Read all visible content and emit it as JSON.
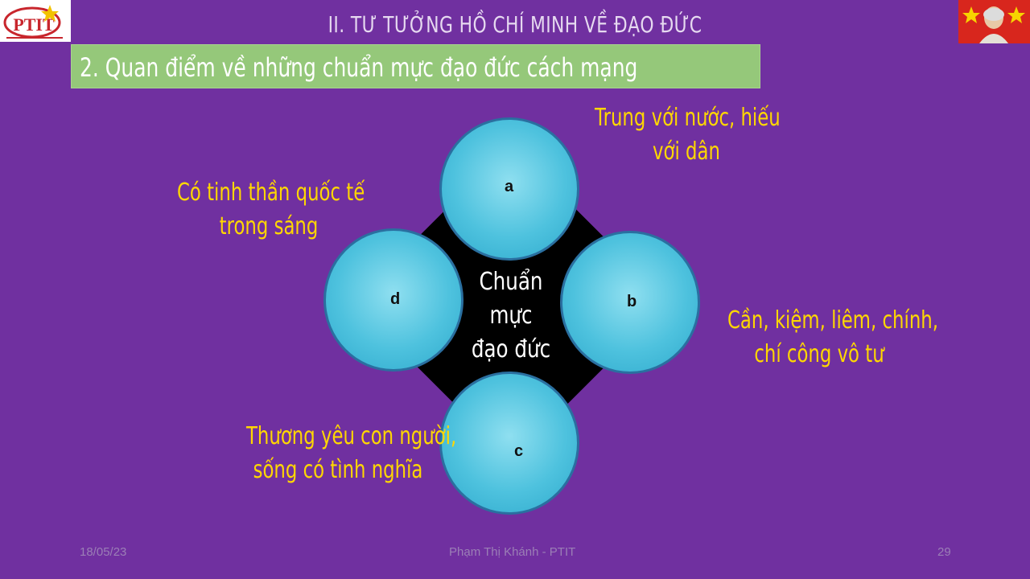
{
  "header": {
    "title": "II. TƯ TƯỞNG HỒ CHÍ MINH VỀ ĐẠO ĐỨC",
    "logo_text": "PTIT"
  },
  "subtitle": "2. Quan điểm về những chuẩn mực đạo đức cách mạng",
  "diagram": {
    "center": [
      "Chuẩn",
      "mực",
      "đạo đức"
    ],
    "nodes": {
      "a": {
        "letter": "a",
        "text": [
          "Trung với nước, hiếu",
          "với dân"
        ]
      },
      "b": {
        "letter": "b",
        "text": [
          "Cần, kiệm, liêm, chính,",
          "chí công vô tư"
        ]
      },
      "c": {
        "letter": "c",
        "text": [
          "Thương yêu con người,",
          "sống có tình nghĩa"
        ]
      },
      "d": {
        "letter": "d",
        "text": [
          "Có tinh thần quốc tế",
          "trong sáng"
        ]
      }
    }
  },
  "footer": {
    "date": "18/05/23",
    "author": "Phạm Thị Khánh - PTIT",
    "page": "29"
  },
  "colors": {
    "background": "#7030A0",
    "subtitle_box": "#95c87a",
    "highlight_text": "#FFD700",
    "circle": "#4ec2de"
  }
}
